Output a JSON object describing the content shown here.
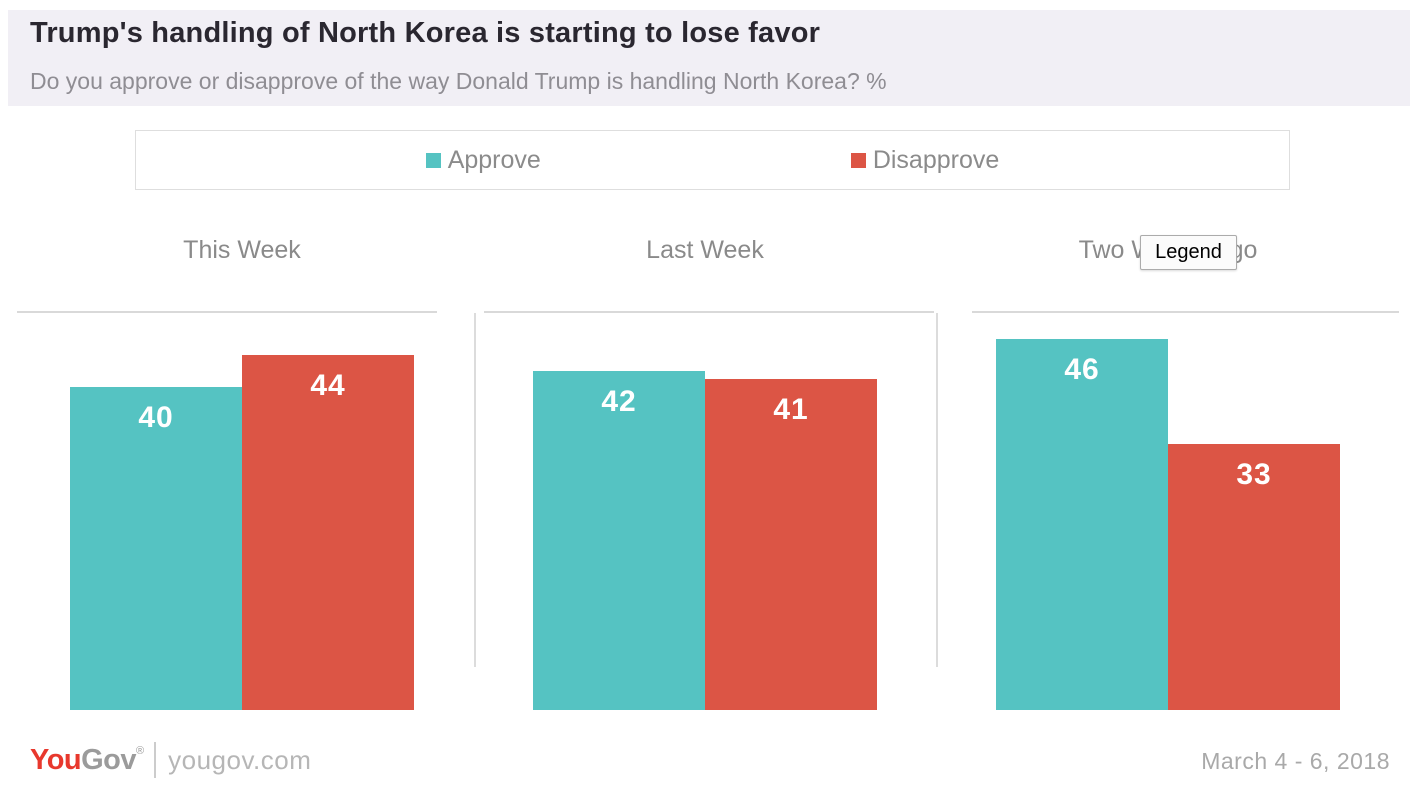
{
  "header": {
    "title": "Trump's handling of North Korea is starting to lose favor",
    "subtitle": "Do you approve or disapprove of the way Donald Trump is handling North Korea? %"
  },
  "tooltip": {
    "text": "Legend"
  },
  "chart_data": {
    "type": "bar",
    "title": "Trump's handling of North Korea is starting to lose favor",
    "subtitle": "Do you approve or disapprove of the way Donald Trump is handling North Korea? %",
    "unit": "%",
    "categories": [
      "This Week",
      "Last Week",
      "Two Weeks Ago"
    ],
    "series": [
      {
        "name": "Approve",
        "color": "#55c3c2",
        "values": [
          40,
          42,
          46
        ]
      },
      {
        "name": "Disapprove",
        "color": "#dc5545",
        "values": [
          44,
          41,
          33
        ]
      }
    ],
    "ylim": [
      0,
      50
    ],
    "legend_position": "top",
    "grid": false,
    "value_labels": true
  },
  "footer": {
    "brand_you": "You",
    "brand_gov": "Gov",
    "registered": "®",
    "site": "yougov.com",
    "date": "March 4 - 6, 2018"
  }
}
